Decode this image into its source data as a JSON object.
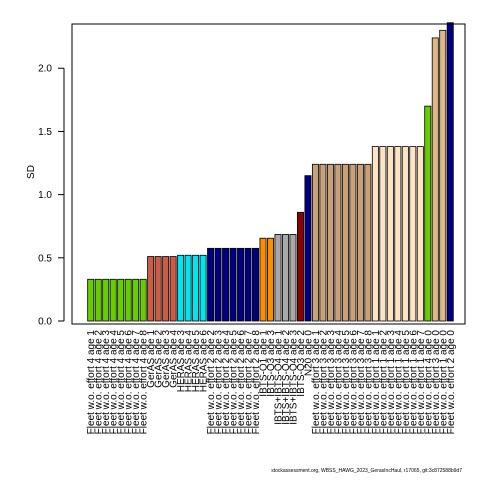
{
  "chart_data": {
    "type": "bar",
    "title": "",
    "xlabel": "",
    "ylabel": "SD",
    "ylim": [
      0,
      2.35
    ],
    "yticks": [
      "0.0",
      "0.5",
      "1.0",
      "1.5",
      "2.0"
    ],
    "bars": [
      {
        "label": "Fleet w.o. effort 4 age 1",
        "value": 0.33,
        "color": "#66CD00"
      },
      {
        "label": "Fleet w.o. effort 4 age 2",
        "value": 0.33,
        "color": "#66CD00"
      },
      {
        "label": "Fleet w.o. effort 4 age 3",
        "value": 0.33,
        "color": "#66CD00"
      },
      {
        "label": "Fleet w.o. effort 4 age 4",
        "value": 0.33,
        "color": "#66CD00"
      },
      {
        "label": "Fleet w.o. effort 4 age 5",
        "value": 0.33,
        "color": "#66CD00"
      },
      {
        "label": "Fleet w.o. effort 4 age 6",
        "value": 0.33,
        "color": "#66CD00"
      },
      {
        "label": "Fleet w.o. effort 4 age 7",
        "value": 0.33,
        "color": "#66CD00"
      },
      {
        "label": "Fleet w.o. effort 4 age 8",
        "value": 0.33,
        "color": "#66CD00"
      },
      {
        "label": "GerAS age 1",
        "value": 0.51,
        "color": "#CD5C45"
      },
      {
        "label": "GerAS age 2",
        "value": 0.51,
        "color": "#CD5C45"
      },
      {
        "label": "GerAS age 3",
        "value": 0.51,
        "color": "#CD5C45"
      },
      {
        "label": "GerAS age 4",
        "value": 0.51,
        "color": "#CD5C45"
      },
      {
        "label": "HERAS age 3",
        "value": 0.52,
        "color": "#00E5EE"
      },
      {
        "label": "HERAS age 4",
        "value": 0.52,
        "color": "#00E5EE"
      },
      {
        "label": "HERAS age 5",
        "value": 0.52,
        "color": "#00E5EE"
      },
      {
        "label": "HERAS age 6",
        "value": 0.52,
        "color": "#00E5EE"
      },
      {
        "label": "Fleet w.o. effort 2 age 2",
        "value": 0.575,
        "color": "#000080"
      },
      {
        "label": "Fleet w.o. effort 2 age 3",
        "value": 0.575,
        "color": "#000080"
      },
      {
        "label": "Fleet w.o. effort 2 age 4",
        "value": 0.575,
        "color": "#000080"
      },
      {
        "label": "Fleet w.o. effort 2 age 5",
        "value": 0.575,
        "color": "#000080"
      },
      {
        "label": "Fleet w.o. effort 2 age 6",
        "value": 0.575,
        "color": "#000080"
      },
      {
        "label": "Fleet w.o. effort 2 age 7",
        "value": 0.575,
        "color": "#000080"
      },
      {
        "label": "Fleet w.o. effort 2 age 8",
        "value": 0.575,
        "color": "#000080"
      },
      {
        "label": "IBTS-Q1 age 1",
        "value": 0.655,
        "color": "#FF8C00"
      },
      {
        "label": "IBTS-Q3 age 3",
        "value": 0.655,
        "color": "#FF8C00"
      },
      {
        "label": "IBTS+IBTS-Q4 age 1",
        "value": 0.685,
        "color": "#A8A8A8"
      },
      {
        "label": "IBTS+IBTS-Q4 age 2",
        "value": 0.685,
        "color": "#A8A8A8"
      },
      {
        "label": "IBTS+IBTS-Q4 age 3",
        "value": 0.685,
        "color": "#A8A8A8"
      },
      {
        "label": "IBTS-Q3 age 2",
        "value": 0.86,
        "color": "#8B0000"
      },
      {
        "label": "N20 age 0",
        "value": 1.15,
        "color": "#000080"
      },
      {
        "label": "Fleet w.o. effort 3 age 1",
        "value": 1.24,
        "color": "#C8A07A"
      },
      {
        "label": "Fleet w.o. effort 3 age 2",
        "value": 1.24,
        "color": "#C8A07A"
      },
      {
        "label": "Fleet w.o. effort 3 age 3",
        "value": 1.24,
        "color": "#C8A07A"
      },
      {
        "label": "Fleet w.o. effort 3 age 4",
        "value": 1.24,
        "color": "#C8A07A"
      },
      {
        "label": "Fleet w.o. effort 3 age 5",
        "value": 1.24,
        "color": "#C8A07A"
      },
      {
        "label": "Fleet w.o. effort 3 age 6",
        "value": 1.24,
        "color": "#C8A07A"
      },
      {
        "label": "Fleet w.o. effort 3 age 7",
        "value": 1.24,
        "color": "#C8A07A"
      },
      {
        "label": "Fleet w.o. effort 3 age 8",
        "value": 1.24,
        "color": "#C8A07A"
      },
      {
        "label": "Fleet w.o. effort 1 age 1",
        "value": 1.38,
        "color": "#FFE4C4"
      },
      {
        "label": "Fleet w.o. effort 1 age 2",
        "value": 1.38,
        "color": "#FFE4C4"
      },
      {
        "label": "Fleet w.o. effort 1 age 3",
        "value": 1.38,
        "color": "#FFE4C4"
      },
      {
        "label": "Fleet w.o. effort 1 age 4",
        "value": 1.38,
        "color": "#FFE4C4"
      },
      {
        "label": "Fleet w.o. effort 1 age 5",
        "value": 1.38,
        "color": "#FFE4C4"
      },
      {
        "label": "Fleet w.o. effort 1 age 6",
        "value": 1.38,
        "color": "#FFE4C4"
      },
      {
        "label": "Fleet w.o. effort 1 age 7",
        "value": 1.38,
        "color": "#FFE4C4"
      },
      {
        "label": "Fleet w.o. effort 4 age 0",
        "value": 1.7,
        "color": "#66CD00"
      },
      {
        "label": "Fleet w.o. effort 3 age 0",
        "value": 2.24,
        "color": "#DEB887"
      },
      {
        "label": "Fleet w.o. effort 1 age 0",
        "value": 2.3,
        "color": "#DEB887"
      },
      {
        "label": "Fleet w.o. effort 2 age 0",
        "value": 2.36,
        "color": "#000080"
      }
    ]
  },
  "footer_text": "stockassessment.org, WBSS_HAWG_2023_GerasIncHaul, r17065, git:3c872588b9d7"
}
